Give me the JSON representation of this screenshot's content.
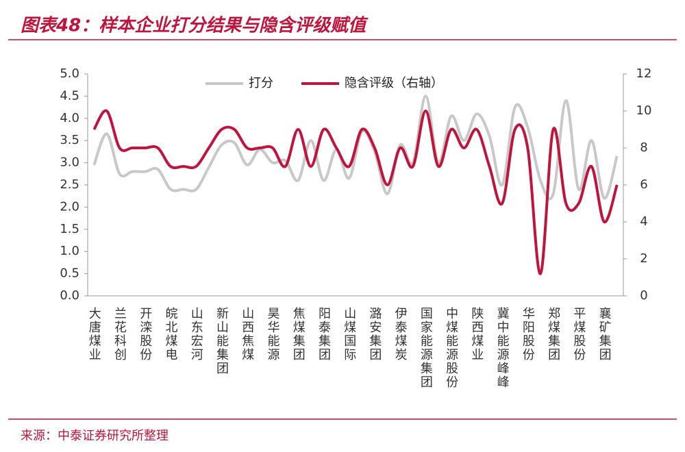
{
  "chart_data": {
    "type": "line",
    "title": "图表48：样本企业打分结果与隐含评级赋值",
    "source": "来源：中泰证券研究所整理",
    "categories": [
      "大唐煤业",
      null,
      "兰花科创",
      null,
      "开滦股份",
      null,
      "皖北煤电",
      null,
      "山东宏河",
      null,
      "新山能集团",
      null,
      "山西焦煤",
      null,
      "昊华能源",
      null,
      "焦煤集团",
      null,
      "阳泰集团",
      null,
      "山煤国际",
      null,
      "潞安集团",
      null,
      "伊泰煤炭",
      null,
      "国家能源集团",
      null,
      "中煤能源股份",
      null,
      "陕西煤业",
      null,
      "冀中能源峰峰",
      null,
      "华阳股份",
      null,
      "郑煤集团",
      null,
      "平煤股份",
      null,
      "襄矿集团",
      null
    ],
    "series": [
      {
        "name": "打分",
        "color": "#c8c8c8",
        "axis": "y",
        "values": [
          2.95,
          3.65,
          2.75,
          2.8,
          2.8,
          2.85,
          2.4,
          2.4,
          2.4,
          2.9,
          3.4,
          3.45,
          2.95,
          3.3,
          3.0,
          3.05,
          2.6,
          3.5,
          2.6,
          3.3,
          2.65,
          3.7,
          3.25,
          2.3,
          3.4,
          3.0,
          4.5,
          3.0,
          4.05,
          3.5,
          4.1,
          3.6,
          2.5,
          4.25,
          3.8,
          2.6,
          2.3,
          4.4,
          2.4,
          3.5,
          2.2,
          3.15
        ]
      },
      {
        "name": "隐含评级（右轴）",
        "color": "#c0143c",
        "axis": "y2",
        "values": [
          9,
          10,
          8,
          8,
          8,
          8,
          7,
          7,
          7,
          8,
          9,
          9,
          8,
          8,
          8,
          7,
          9,
          7,
          9,
          8,
          7,
          9,
          8,
          6,
          8,
          7,
          10,
          7,
          9,
          8,
          9,
          7,
          5,
          9,
          8,
          1.2,
          9,
          5,
          5,
          7,
          4,
          6
        ]
      }
    ],
    "ylim": [
      0,
      5
    ],
    "yticks": [
      {
        "value": 0,
        "label": "0.0"
      },
      {
        "value": 0.5,
        "label": "0.5"
      },
      {
        "value": 1,
        "label": "1.0"
      },
      {
        "value": 1.5,
        "label": "1.5"
      },
      {
        "value": 2,
        "label": "2.0"
      },
      {
        "value": 2.5,
        "label": "2.5"
      },
      {
        "value": 3,
        "label": "3.0"
      },
      {
        "value": 3.5,
        "label": "3.5"
      },
      {
        "value": 4,
        "label": "4.0"
      },
      {
        "value": 4.5,
        "label": "4.5"
      },
      {
        "value": 5,
        "label": "5.0"
      }
    ],
    "y2lim": [
      0,
      12
    ],
    "y2ticks": [
      0,
      2,
      4,
      6,
      8,
      10,
      12
    ],
    "legend": "top"
  }
}
